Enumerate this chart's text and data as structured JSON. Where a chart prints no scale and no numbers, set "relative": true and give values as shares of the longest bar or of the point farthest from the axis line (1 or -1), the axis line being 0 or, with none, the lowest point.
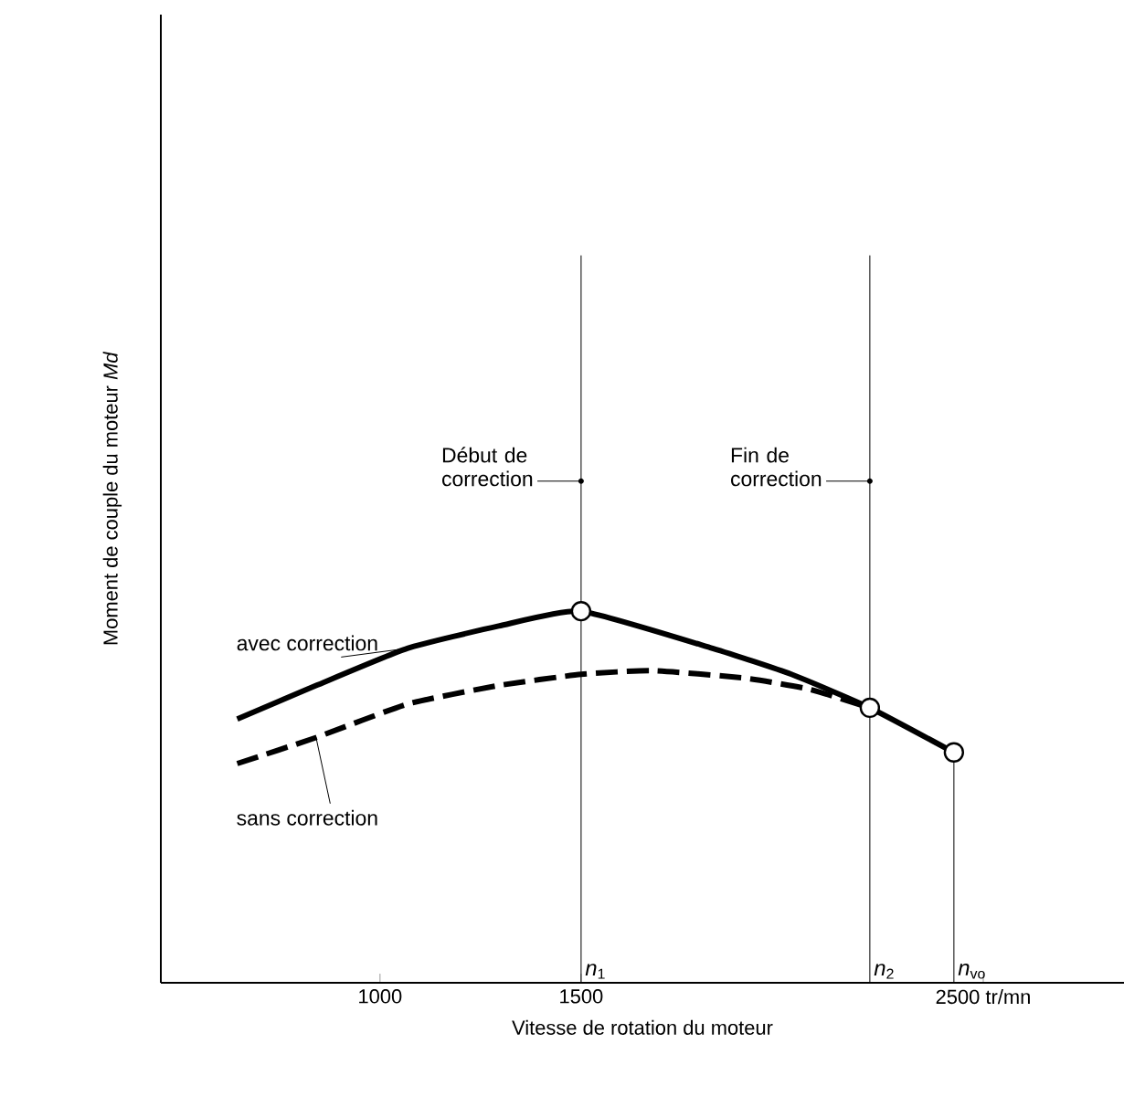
{
  "chart_data": {
    "type": "line",
    "relative": true,
    "xlabel": "Vitesse de rotation du moteur",
    "ylabel": "Moment de couple du moteur *Md*",
    "xlim": [
      455,
      2850
    ],
    "xticks": [
      1000,
      1500,
      {
        "value": 2500,
        "label": "2500 tr/mn"
      }
    ],
    "grid": false,
    "series": [
      {
        "name": "avec correction",
        "color": "#000000",
        "line_style": "solid",
        "x": [
          645,
          841,
          1068,
          1295,
          1500,
          1827,
          2023,
          2218,
          2427
        ],
        "values": [
          0.71,
          0.8,
          0.9,
          0.96,
          1,
          0.9,
          0.83,
          0.74,
          0.62
        ]
      },
      {
        "name": "sans correction",
        "color": "#000000",
        "line_style": "dashed",
        "x": [
          645,
          841,
          1068,
          1295,
          1500,
          1677,
          1905,
          2068,
          2218
        ],
        "values": [
          0.59,
          0.66,
          0.75,
          0.8,
          0.83,
          0.84,
          0.82,
          0.79,
          0.74
        ]
      },
      {
        "type": "scatter",
        "marker": "circle",
        "color": "#000000",
        "x": [
          1500,
          2218,
          2427
        ],
        "values": [
          1,
          0.74,
          0.62
        ]
      }
    ],
    "ref_lines": [
      {
        "axis": "x",
        "value": 1500,
        "label": "*n*$_{1}$"
      },
      {
        "axis": "x",
        "value": 2218,
        "label": "*n*$_{2}$"
      },
      {
        "axis": "x",
        "value": 2427,
        "label": "*n*$_{vo}$"
      }
    ],
    "annotations": [
      {
        "text": "Début de correction",
        "x": 1500,
        "y": 1.35
      },
      {
        "text": "Fin de correction",
        "x": 2218,
        "y": 1.35
      }
    ]
  }
}
